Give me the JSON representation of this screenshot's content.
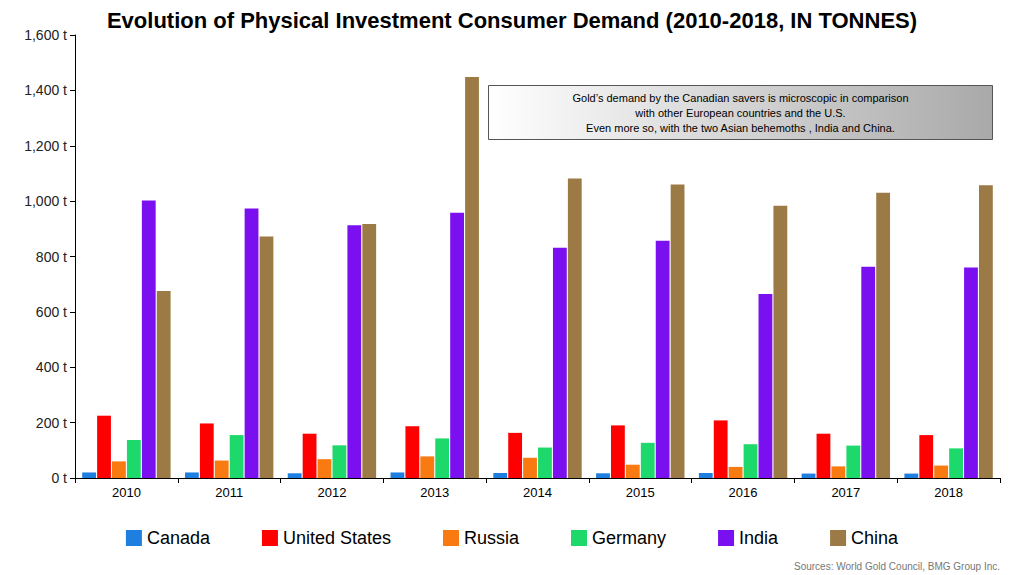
{
  "chart_data": {
    "type": "bar",
    "title": "Evolution of Physical Investment Consumer Demand (2010-2018, IN TONNES)",
    "categories": [
      "2010",
      "2011",
      "2012",
      "2013",
      "2014",
      "2015",
      "2016",
      "2017",
      "2018"
    ],
    "series": [
      {
        "name": "Canada",
        "color": "#1e7fe0",
        "values": [
          20,
          20,
          17,
          20,
          18,
          17,
          18,
          16,
          16
        ]
      },
      {
        "name": "United States",
        "color": "#ff0000",
        "values": [
          225,
          197,
          160,
          187,
          163,
          190,
          208,
          160,
          155
        ]
      },
      {
        "name": "Russia",
        "color": "#f97a10",
        "values": [
          60,
          63,
          68,
          78,
          73,
          48,
          40,
          42,
          45
        ]
      },
      {
        "name": "Germany",
        "color": "#1dd86a",
        "values": [
          137,
          155,
          118,
          143,
          110,
          127,
          122,
          117,
          107
        ]
      },
      {
        "name": "India",
        "color": "#7a10f0",
        "values": [
          1002,
          973,
          913,
          958,
          832,
          857,
          665,
          763,
          760
        ]
      },
      {
        "name": "China",
        "color": "#9b7a46",
        "values": [
          675,
          872,
          917,
          1448,
          1082,
          1060,
          983,
          1030,
          1057
        ]
      }
    ],
    "ylim": [
      0,
      1600
    ],
    "yticks": [
      {
        "value": 0,
        "label": "0 t"
      },
      {
        "value": 200,
        "label": "200 t"
      },
      {
        "value": 400,
        "label": "400 t"
      },
      {
        "value": 600,
        "label": "600 t"
      },
      {
        "value": 800,
        "label": "800 t"
      },
      {
        "value": 1000,
        "label": "1,000 t"
      },
      {
        "value": 1200,
        "label": "1,200 t"
      },
      {
        "value": 1400,
        "label": "1,400 t"
      },
      {
        "value": 1600,
        "label": "1,600 t"
      }
    ],
    "grid": false,
    "legend": "bottom",
    "annotation": "Gold’s demand by the Canadian savers is microscopic in comparison\nwith other European countries and the U.S.\nEven more so, with the two Asian behemoths , India and China.",
    "source": "Sources: World Gold Council, BMG Group Inc."
  }
}
